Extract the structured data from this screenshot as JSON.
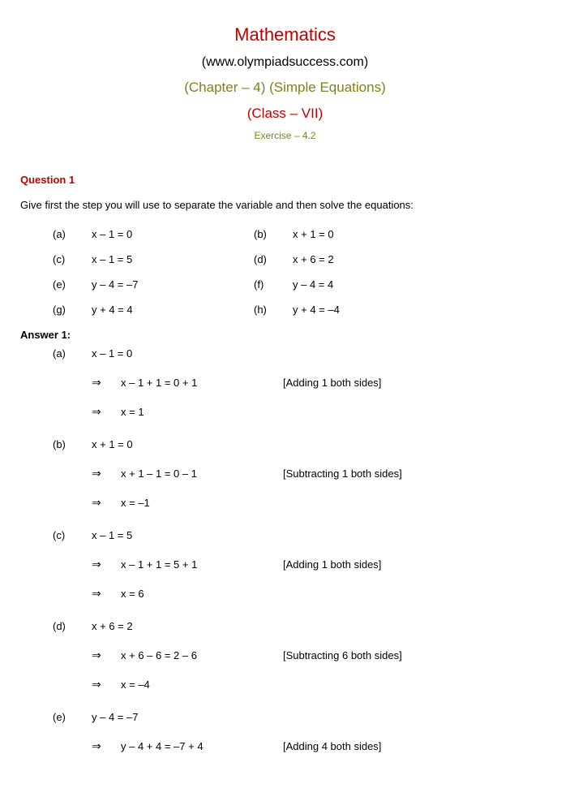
{
  "colors": {
    "red": "#c00000",
    "olive": "#7f7f1f",
    "black": "#000000"
  },
  "header": {
    "title": "Mathematics",
    "url": "(www.olympiadsuccess.com)",
    "chapter": "(Chapter – 4) (Simple Equations)",
    "class": "(Class – VII)",
    "exercise": "Exercise – 4.2"
  },
  "question": {
    "heading": "Question 1",
    "text": "Give first the step you will use to separate the variable and then solve the equations:",
    "parts": [
      {
        "label": "(a)",
        "eq": "x – 1 = 0"
      },
      {
        "label": "(b)",
        "eq": "x + 1 = 0"
      },
      {
        "label": "(c)",
        "eq": "x – 1 = 5"
      },
      {
        "label": "(d)",
        "eq": "x + 6 = 2"
      },
      {
        "label": "(e)",
        "eq": "y – 4 = –7"
      },
      {
        "label": "(f)",
        "eq": "y – 4 = 4"
      },
      {
        "label": "(g)",
        "eq": "y + 4 = 4"
      },
      {
        "label": "(h)",
        "eq": "y + 4 = –4"
      }
    ]
  },
  "answer": {
    "heading": "Answer 1:",
    "arrow": "⇒",
    "solutions": [
      {
        "label": "(a)",
        "first": "x – 1 = 0",
        "steps": [
          {
            "eq": "x – 1 + 1 = 0 + 1",
            "note": "[Adding 1 both sides]"
          },
          {
            "eq": "x = 1",
            "note": ""
          }
        ]
      },
      {
        "label": "(b)",
        "first": "x + 1 = 0",
        "steps": [
          {
            "eq": "x + 1 – 1 = 0 – 1",
            "note": "[Subtracting 1 both sides]"
          },
          {
            "eq": "x = –1",
            "note": ""
          }
        ]
      },
      {
        "label": "(c)",
        "first": "x – 1 = 5",
        "steps": [
          {
            "eq": "x – 1 + 1 = 5 + 1",
            "note": "[Adding 1 both sides]"
          },
          {
            "eq": "x = 6",
            "note": ""
          }
        ]
      },
      {
        "label": "(d)",
        "first": "x + 6 = 2",
        "steps": [
          {
            "eq": "x + 6 – 6 = 2 – 6",
            "note": "[Subtracting 6 both sides]"
          },
          {
            "eq": "x = –4",
            "note": ""
          }
        ]
      },
      {
        "label": "(e)",
        "first": "y – 4 = –7",
        "steps": [
          {
            "eq": "y – 4 + 4 = –7 + 4",
            "note": "[Adding 4 both sides]"
          }
        ]
      }
    ]
  }
}
